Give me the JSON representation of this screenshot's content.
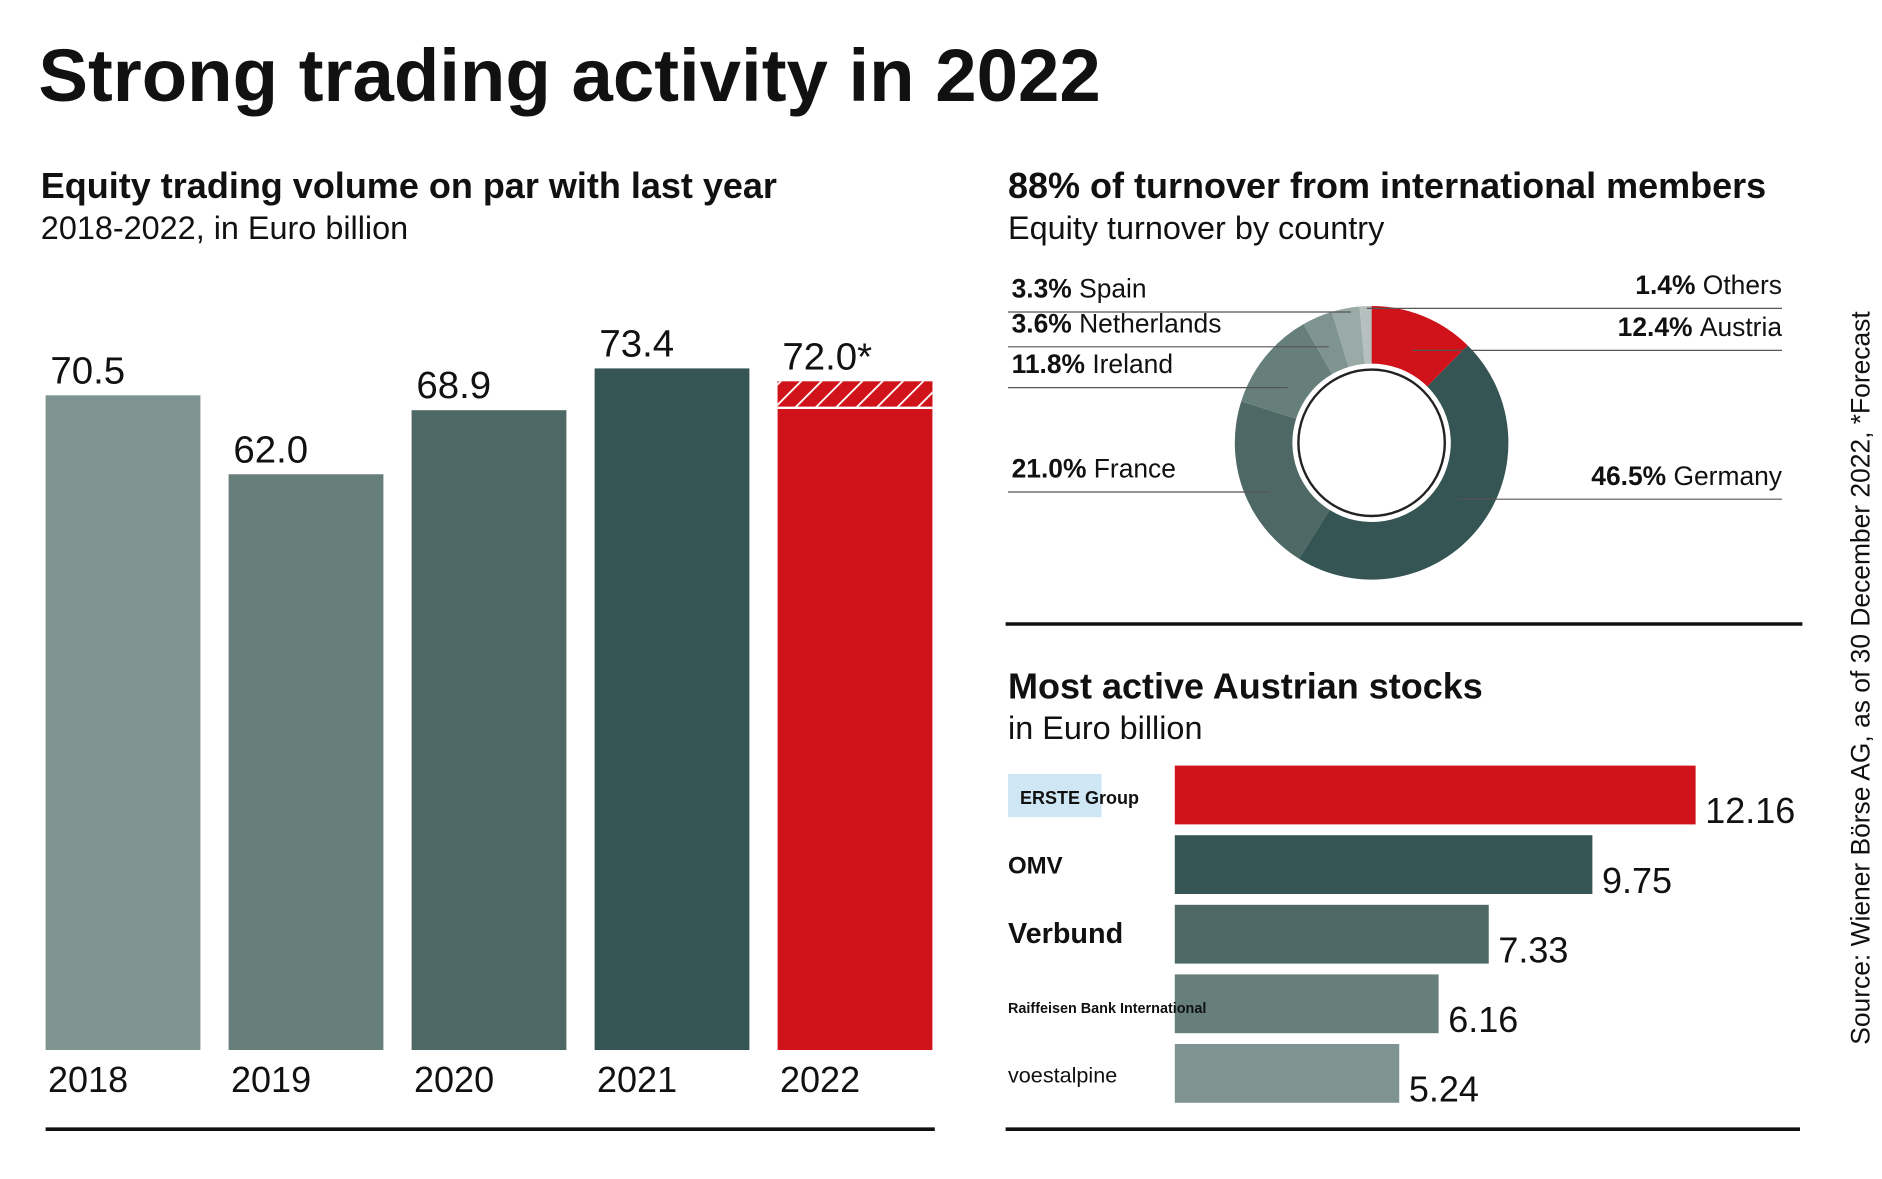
{
  "title": "Strong trading activity in 2022",
  "source": "Source: Wiener Börse AG, as of 30 December 2022, *Forecast",
  "chart_data": [
    {
      "type": "bar",
      "title": "Equity trading volume on par with last year",
      "subtitle": "2018-2022, in Euro billion",
      "categories": [
        "2018",
        "2019",
        "2020",
        "2021",
        "2022"
      ],
      "values": [
        70.5,
        62.0,
        68.9,
        73.4,
        72.0
      ],
      "value_labels": [
        "70.5",
        "62.0",
        "68.9",
        "73.4",
        "72.0*"
      ],
      "colors": [
        "#7f9490",
        "#667f7a",
        "#4e6965",
        "#345553",
        "#d0121b"
      ],
      "hatched": [
        false,
        false,
        false,
        false,
        true
      ]
    },
    {
      "type": "donut",
      "title": "88% of turnover from international members",
      "subtitle": "Equity turnover by country",
      "categories": [
        "Austria",
        "Germany",
        "France",
        "Ireland",
        "Netherlands",
        "Spain",
        "Others"
      ],
      "values": [
        12.4,
        46.5,
        21.0,
        11.8,
        3.6,
        3.3,
        1.4
      ],
      "value_labels": [
        "12.4%",
        "46.5%",
        "21.0%",
        "11.8%",
        "3.6%",
        "3.3%",
        "1.4%"
      ],
      "colors": [
        "#d0121b",
        "#345553",
        "#4e6965",
        "#667f7a",
        "#7f9490",
        "#99aaa7",
        "#b6c1bf"
      ]
    },
    {
      "type": "hbar",
      "title": "Most active Austrian stocks",
      "subtitle": "in Euro billion",
      "categories": [
        "ERSTE Group",
        "OMV",
        "Verbund",
        "Raiffeisen Bank International",
        "voestalpine"
      ],
      "values": [
        12.16,
        9.75,
        7.33,
        6.16,
        5.24
      ],
      "colors": [
        "#d0121b",
        "#345553",
        "#4e6965",
        "#667f7a",
        "#7f9490"
      ]
    }
  ]
}
